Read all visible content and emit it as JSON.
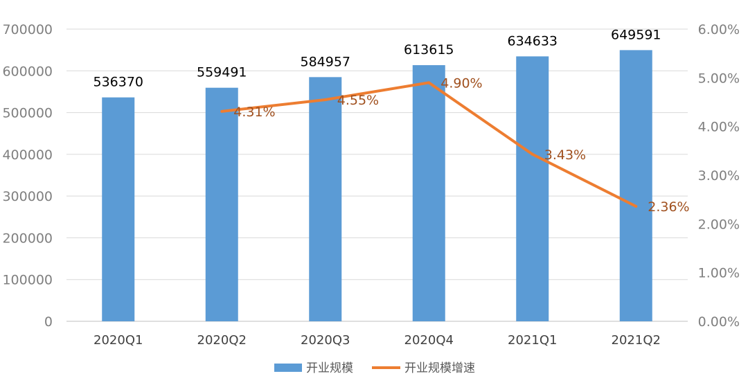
{
  "chart_data": {
    "type": "bar",
    "categories": [
      "2020Q1",
      "2020Q2",
      "2020Q3",
      "2020Q4",
      "2021Q1",
      "2021Q2"
    ],
    "series": [
      {
        "name": "开业规模",
        "type": "bar",
        "axis": "left",
        "values": [
          536370,
          559491,
          584957,
          613615,
          634633,
          649591
        ],
        "labels": [
          "536370",
          "559491",
          "584957",
          "613615",
          "634633",
          "649591"
        ]
      },
      {
        "name": "开业规模增速",
        "type": "line",
        "axis": "right",
        "values": [
          null,
          4.31,
          4.55,
          4.9,
          3.43,
          2.36
        ],
        "labels": [
          null,
          "4.31%",
          "4.55%",
          "4.90%",
          "3.43%",
          "2.36%"
        ]
      }
    ],
    "ylim": [
      0,
      700000
    ],
    "y2lim": [
      0,
      6
    ],
    "y_ticks": [
      "0",
      "100000",
      "200000",
      "300000",
      "400000",
      "500000",
      "600000",
      "700000"
    ],
    "y2_ticks": [
      "0.00%",
      "1.00%",
      "2.00%",
      "3.00%",
      "4.00%",
      "5.00%",
      "6.00%"
    ],
    "grid": true,
    "legend_position": "bottom",
    "colors": {
      "bar": "#5b9bd5",
      "line": "#ed7d31",
      "line_label": "#a0501e",
      "grid": "#d9d9d9"
    }
  }
}
